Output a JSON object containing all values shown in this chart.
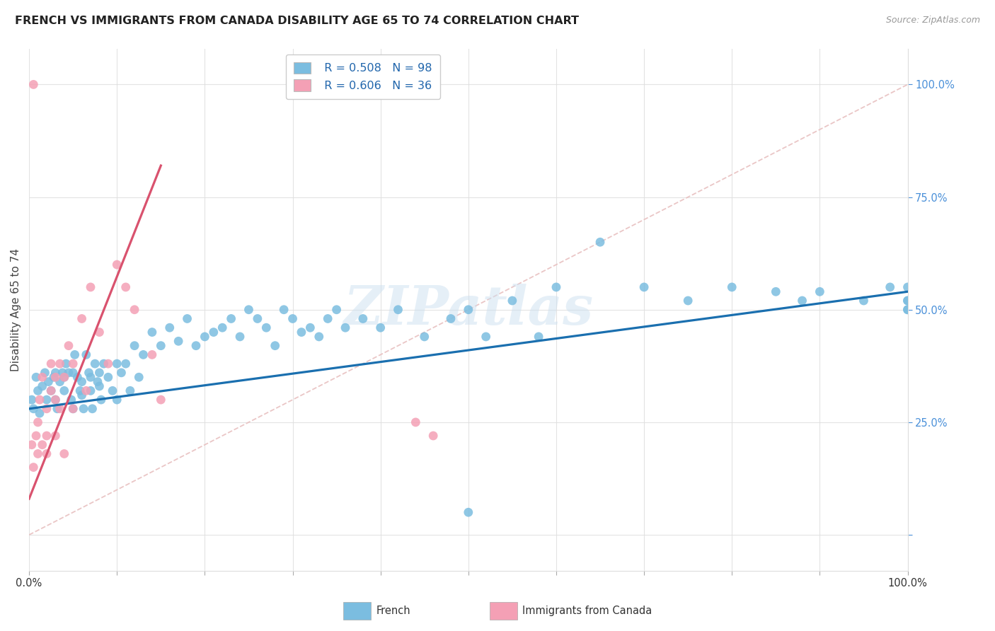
{
  "title": "FRENCH VS IMMIGRANTS FROM CANADA DISABILITY AGE 65 TO 74 CORRELATION CHART",
  "source": "Source: ZipAtlas.com",
  "ylabel": "Disability Age 65 to 74",
  "legend_french_label": "French",
  "legend_immigrants_label": "Immigrants from Canada",
  "legend_french_r": "R = 0.508",
  "legend_french_n": "N = 98",
  "legend_immigrants_r": "R = 0.606",
  "legend_immigrants_n": "N = 36",
  "french_color": "#7bbde0",
  "immigrants_color": "#f4a0b5",
  "french_line_color": "#1a6faf",
  "immigrants_line_color": "#d9526e",
  "diagonal_color": "#e8c0c0",
  "watermark": "ZIPatlas",
  "xlim": [
    0,
    100
  ],
  "ylim": [
    -8,
    108
  ],
  "french_x": [
    0.3,
    0.5,
    0.8,
    1.0,
    1.2,
    1.5,
    1.8,
    2.0,
    2.2,
    2.5,
    2.8,
    3.0,
    3.0,
    3.2,
    3.5,
    3.8,
    4.0,
    4.0,
    4.2,
    4.5,
    4.8,
    5.0,
    5.0,
    5.2,
    5.5,
    5.8,
    6.0,
    6.0,
    6.2,
    6.5,
    6.8,
    7.0,
    7.0,
    7.2,
    7.5,
    7.8,
    8.0,
    8.0,
    8.2,
    8.5,
    9.0,
    9.5,
    10.0,
    10.0,
    10.5,
    11.0,
    11.5,
    12.0,
    12.5,
    13.0,
    14.0,
    15.0,
    16.0,
    17.0,
    18.0,
    19.0,
    20.0,
    21.0,
    22.0,
    23.0,
    24.0,
    25.0,
    26.0,
    27.0,
    28.0,
    29.0,
    30.0,
    31.0,
    32.0,
    33.0,
    34.0,
    35.0,
    36.0,
    38.0,
    40.0,
    42.0,
    45.0,
    48.0,
    50.0,
    52.0,
    55.0,
    58.0,
    60.0,
    65.0,
    70.0,
    75.0,
    80.0,
    85.0,
    88.0,
    90.0,
    95.0,
    98.0,
    50.0,
    100.0,
    100.0,
    100.0,
    100.0,
    100.0
  ],
  "french_y": [
    30,
    28,
    35,
    32,
    27,
    33,
    36,
    30,
    34,
    32,
    35,
    36,
    30,
    28,
    34,
    36,
    32,
    35,
    38,
    36,
    30,
    36,
    28,
    40,
    35,
    32,
    34,
    31,
    28,
    40,
    36,
    35,
    32,
    28,
    38,
    34,
    36,
    33,
    30,
    38,
    35,
    32,
    38,
    30,
    36,
    38,
    32,
    42,
    35,
    40,
    45,
    42,
    46,
    43,
    48,
    42,
    44,
    45,
    46,
    48,
    44,
    50,
    48,
    46,
    42,
    50,
    48,
    45,
    46,
    44,
    48,
    50,
    46,
    48,
    46,
    50,
    44,
    48,
    50,
    44,
    52,
    44,
    55,
    65,
    55,
    52,
    55,
    54,
    52,
    54,
    52,
    55,
    5,
    50,
    52,
    55,
    50,
    52
  ],
  "immigrants_x": [
    0.3,
    0.5,
    0.8,
    1.0,
    1.0,
    1.2,
    1.5,
    1.5,
    2.0,
    2.0,
    2.0,
    2.5,
    2.5,
    3.0,
    3.0,
    3.0,
    3.5,
    3.5,
    4.0,
    4.0,
    4.5,
    5.0,
    5.0,
    6.0,
    6.5,
    7.0,
    8.0,
    9.0,
    10.0,
    11.0,
    12.0,
    14.0,
    15.0,
    44.0,
    46.0,
    0.5
  ],
  "immigrants_y": [
    20,
    15,
    22,
    18,
    25,
    30,
    35,
    20,
    18,
    22,
    28,
    32,
    38,
    30,
    35,
    22,
    38,
    28,
    35,
    18,
    42,
    38,
    28,
    48,
    32,
    55,
    45,
    38,
    60,
    55,
    50,
    40,
    30,
    25,
    22,
    100
  ],
  "french_trend_x": [
    0,
    100
  ],
  "french_trend_y": [
    28,
    54
  ],
  "immigrants_trend_x": [
    0,
    15
  ],
  "immigrants_trend_y": [
    8,
    82
  ]
}
